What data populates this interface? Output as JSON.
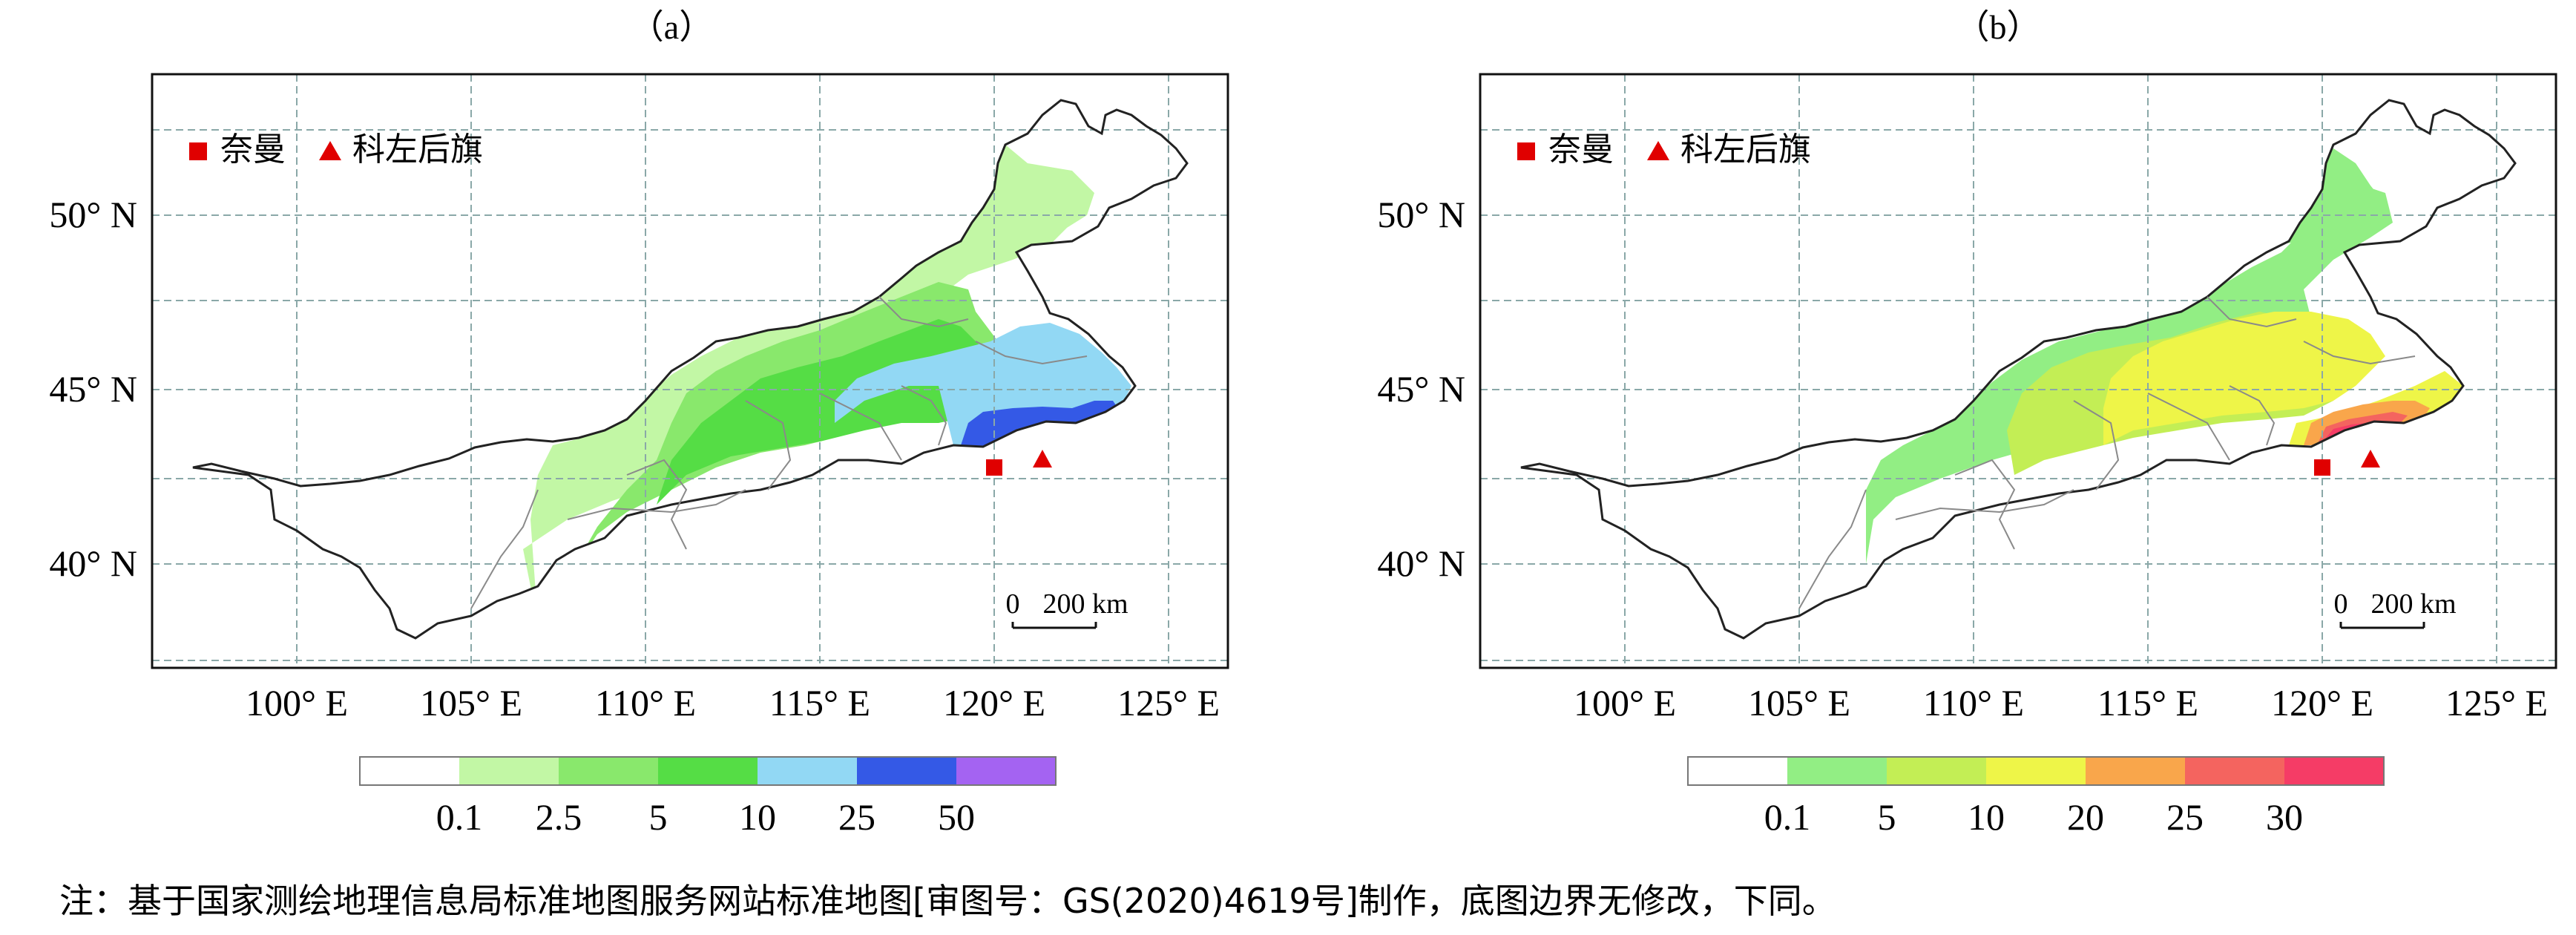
{
  "panels": [
    {
      "label": "（a）",
      "legend": [
        {
          "marker": "square",
          "color": "#e00000",
          "label": "奈曼"
        },
        {
          "marker": "triangle",
          "color": "#e00000",
          "label": "科左后旗"
        }
      ],
      "lat_labels": [
        "50° N",
        "45° N",
        "40° N"
      ],
      "lon_labels": [
        "100° E",
        "105° E",
        "110° E",
        "115° E",
        "120° E",
        "125° E"
      ],
      "scale_bar": {
        "zero": "0",
        "distance": "200 km"
      },
      "colorbar": {
        "colors": [
          "#ffffff",
          "#c2f7a5",
          "#89e86c",
          "#55dd45",
          "#92d8f4",
          "#3459e6",
          "#a463f2"
        ],
        "ticks": [
          "0.1",
          "2.5",
          "5",
          "10",
          "25",
          "50"
        ]
      }
    },
    {
      "label": "（b）",
      "legend": [
        {
          "marker": "square",
          "color": "#e00000",
          "label": "奈曼"
        },
        {
          "marker": "triangle",
          "color": "#e00000",
          "label": "科左后旗"
        }
      ],
      "lat_labels": [
        "50° N",
        "45° N",
        "40° N"
      ],
      "lon_labels": [
        "100° E",
        "105° E",
        "110° E",
        "115° E",
        "120° E",
        "125° E"
      ],
      "scale_bar": {
        "zero": "0",
        "distance": "200 km"
      },
      "colorbar": {
        "colors": [
          "#ffffff",
          "#92ee84",
          "#c3ee55",
          "#eef548",
          "#f9a64b",
          "#f4645f",
          "#f53c66"
        ],
        "ticks": [
          "0.1",
          "5",
          "10",
          "20",
          "25",
          "30"
        ]
      }
    }
  ],
  "note": "注：基于国家测绘地理信息局标准地图服务网站标准地图[审图号：GS(2020)4619号]制作，底图边界无修改，下同。"
}
